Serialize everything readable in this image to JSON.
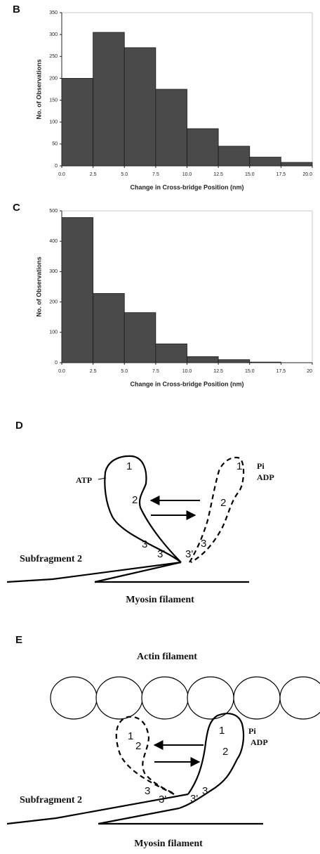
{
  "chart_data": [
    {
      "type": "histogram",
      "panel": "B",
      "ylabel": "No. of Observations",
      "xlabel": "Change in Cross-bridge Position (nm)",
      "bins": [
        0,
        2.5,
        5,
        7.5,
        10,
        12.5,
        15,
        17.5,
        20
      ],
      "values": [
        200,
        305,
        270,
        175,
        85,
        45,
        20,
        8
      ],
      "color": "#4a4a4a",
      "xlim": [
        0,
        20
      ],
      "ylim": [
        0,
        350
      ],
      "xticks": [
        {
          "value": 0,
          "label": "0.0"
        },
        2.5,
        {
          "value": 5,
          "label": "5.0"
        },
        7.5,
        {
          "value": 10,
          "label": "10.0"
        },
        12.5,
        {
          "value": 15,
          "label": "15.0"
        },
        17.5,
        {
          "value": 20,
          "label": "20.0"
        }
      ],
      "yticks": [
        0,
        50,
        100,
        150,
        200,
        250,
        300,
        350
      ]
    },
    {
      "type": "histogram",
      "panel": "C",
      "ylabel": "No. of Observations",
      "xlabel": "Change in Cross-bridge Position (nm)",
      "bins": [
        0,
        2.5,
        5,
        7.5,
        10,
        12.5,
        15,
        17.5,
        20
      ],
      "values": [
        478,
        228,
        165,
        62,
        20,
        10,
        2,
        0
      ],
      "color": "#4a4a4a",
      "xlim": [
        0,
        20
      ],
      "ylim": [
        0,
        500
      ],
      "xticks": [
        {
          "value": 0,
          "label": "0.0"
        },
        2.5,
        {
          "value": 5,
          "label": "5.0"
        },
        7.5,
        {
          "value": 10,
          "label": "10.0"
        },
        12.5,
        {
          "value": 15,
          "label": "15.0"
        },
        17.5,
        20
      ],
      "yticks": [
        0,
        100,
        200,
        300,
        400,
        500
      ]
    }
  ],
  "diagrams": [
    {
      "panel": "D",
      "texts": [
        "ATP",
        "1",
        "2",
        "3",
        "3'",
        "1",
        "2",
        "3'",
        "3",
        "Pi",
        "ADP",
        "Subfragment 2",
        "Myosin filament"
      ]
    },
    {
      "panel": "E",
      "texts": [
        "Actin filament",
        "1",
        "2",
        "3",
        "3'",
        "1",
        "2",
        "3'",
        "3",
        "Pi",
        "ADP",
        "Subfragment 2",
        "Myosin filament"
      ]
    }
  ]
}
